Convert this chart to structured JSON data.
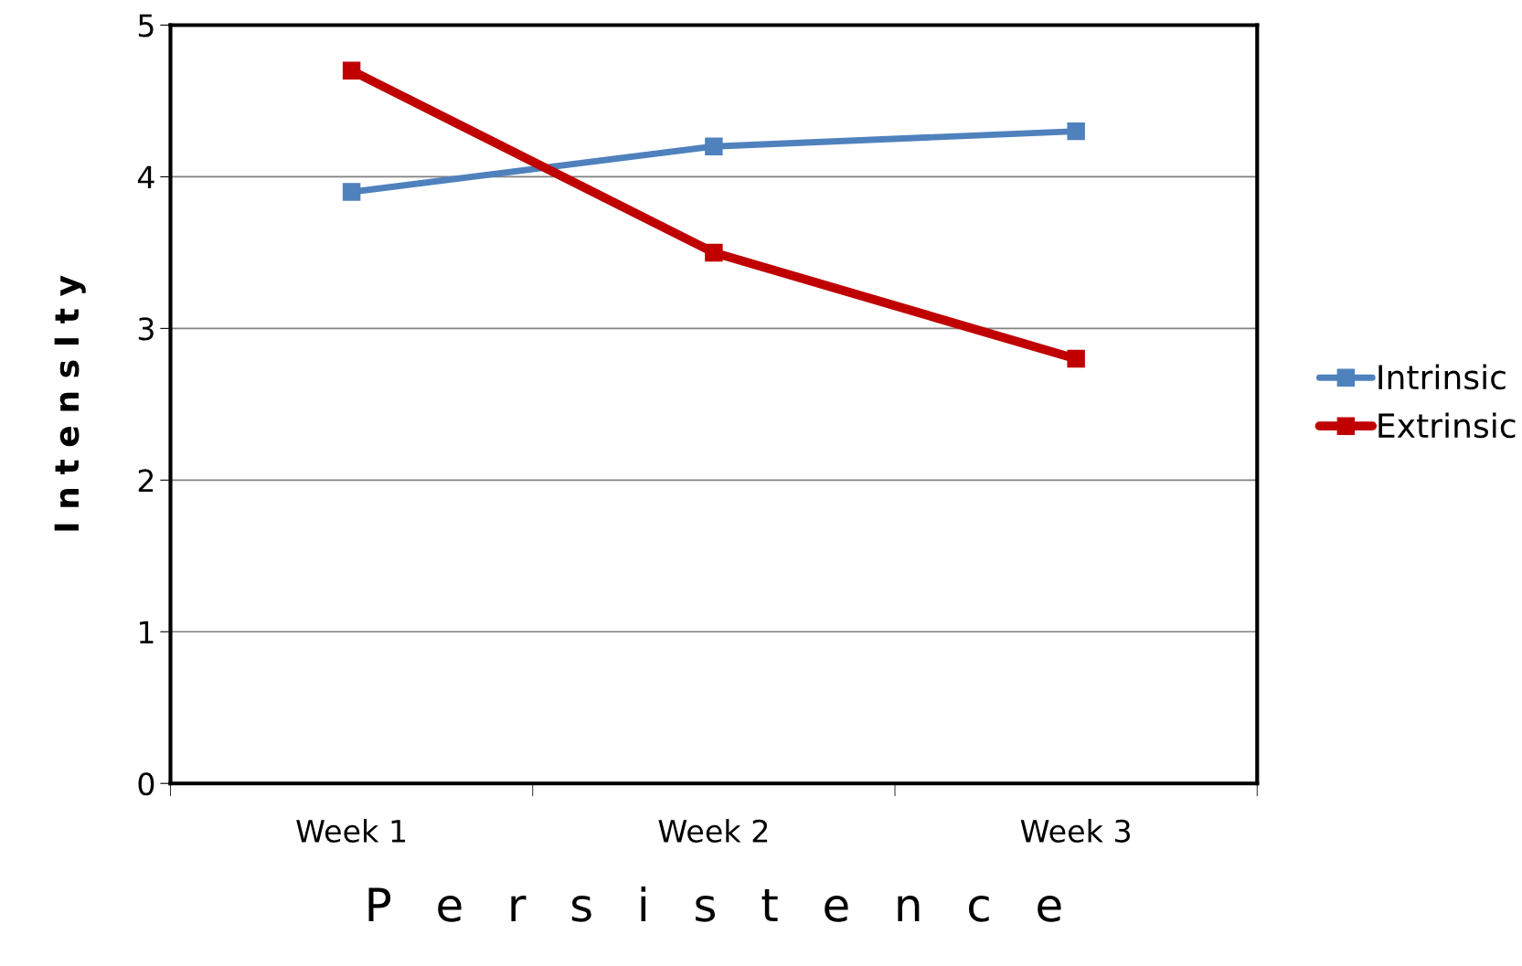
{
  "chart_data": {
    "type": "line",
    "xlabel": "P   e   r   s   i   s   t   e   n   c   e",
    "ylabel": "I n t e n s I t y",
    "categories": [
      "Week 1",
      "Week 2",
      "Week 3"
    ],
    "series": [
      {
        "name": "Intrinsic",
        "color": "#4f81bd",
        "values": [
          3.9,
          4.2,
          4.3
        ]
      },
      {
        "name": "Extrinsic",
        "color": "#c00000",
        "values": [
          4.7,
          3.5,
          2.8
        ]
      }
    ],
    "ylim": [
      0,
      5
    ],
    "yticks": [
      0,
      1,
      2,
      3,
      4,
      5
    ],
    "grid": "y",
    "legend": "right",
    "marker": "square",
    "line_style": "solid"
  }
}
